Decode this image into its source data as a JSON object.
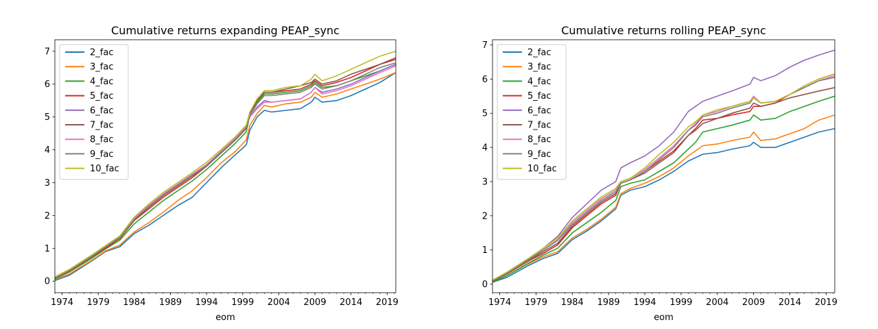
{
  "chart_data": [
    {
      "type": "line",
      "title": "Cumulative returns expanding PEAP_sync",
      "xlabel": "eom",
      "ylabel": "",
      "xlim": [
        1973.0,
        2020.2
      ],
      "ylim": [
        -0.35,
        7.35
      ],
      "xticks": [
        1974,
        1979,
        1984,
        1989,
        1994,
        1999,
        2004,
        2009,
        2014,
        2019
      ],
      "yticks": [
        0,
        1,
        2,
        3,
        4,
        5,
        6,
        7
      ],
      "legend": "upper-left",
      "x": [
        1973.0,
        1975.0,
        1978.0,
        1980.0,
        1982.0,
        1984.0,
        1986.0,
        1988.0,
        1990.0,
        1992.0,
        1994.0,
        1996.0,
        1998.0,
        1999.5,
        2000.0,
        2001.0,
        2002.0,
        2003.0,
        2005.0,
        2007.0,
        2008.5,
        2009.0,
        2010.0,
        2012.0,
        2014.0,
        2016.0,
        2018.0,
        2020.2
      ],
      "series": [
        {
          "name": "2_fac",
          "color": "#1f77b4",
          "values": [
            0.02,
            0.18,
            0.6,
            0.9,
            1.05,
            1.45,
            1.7,
            2.0,
            2.3,
            2.55,
            3.0,
            3.45,
            3.85,
            4.15,
            4.6,
            5.0,
            5.2,
            5.15,
            5.2,
            5.25,
            5.45,
            5.6,
            5.45,
            5.5,
            5.65,
            5.85,
            6.05,
            6.35
          ]
        },
        {
          "name": "3_fac",
          "color": "#ff7f0e",
          "values": [
            0.05,
            0.22,
            0.62,
            0.92,
            1.1,
            1.5,
            1.78,
            2.1,
            2.45,
            2.75,
            3.15,
            3.6,
            3.95,
            4.3,
            4.75,
            5.1,
            5.35,
            5.3,
            5.4,
            5.45,
            5.6,
            5.75,
            5.6,
            5.7,
            5.85,
            6.0,
            6.15,
            6.35
          ]
        },
        {
          "name": "4_fac",
          "color": "#2ca02c",
          "values": [
            0.07,
            0.28,
            0.68,
            0.98,
            1.25,
            1.75,
            2.1,
            2.45,
            2.75,
            3.05,
            3.4,
            3.8,
            4.2,
            4.55,
            5.05,
            5.45,
            5.7,
            5.7,
            5.75,
            5.8,
            5.95,
            6.05,
            5.9,
            5.95,
            6.1,
            6.25,
            6.4,
            6.6
          ]
        },
        {
          "name": "5_fac",
          "color": "#d62728",
          "values": [
            0.1,
            0.3,
            0.72,
            1.0,
            1.3,
            1.85,
            2.2,
            2.55,
            2.85,
            3.15,
            3.5,
            3.9,
            4.3,
            4.65,
            5.1,
            5.5,
            5.75,
            5.75,
            5.8,
            5.85,
            6.0,
            6.1,
            5.95,
            6.05,
            6.2,
            6.4,
            6.6,
            6.8
          ]
        },
        {
          "name": "6_fac",
          "color": "#9467bd",
          "values": [
            0.12,
            0.33,
            0.75,
            1.05,
            1.35,
            1.9,
            2.3,
            2.65,
            2.95,
            3.25,
            3.55,
            3.95,
            4.35,
            4.7,
            5.0,
            5.3,
            5.5,
            5.45,
            5.5,
            5.55,
            5.75,
            5.9,
            5.75,
            5.85,
            6.0,
            6.2,
            6.4,
            6.6
          ]
        },
        {
          "name": "7_fac",
          "color": "#8c564b",
          "values": [
            0.1,
            0.32,
            0.73,
            1.03,
            1.32,
            1.87,
            2.25,
            2.6,
            2.9,
            3.2,
            3.5,
            3.9,
            4.3,
            4.65,
            5.1,
            5.5,
            5.75,
            5.75,
            5.85,
            5.95,
            6.05,
            6.15,
            6.0,
            6.1,
            6.3,
            6.45,
            6.6,
            6.75
          ]
        },
        {
          "name": "8_fac",
          "color": "#e377c2",
          "values": [
            0.12,
            0.34,
            0.76,
            1.06,
            1.36,
            1.92,
            2.3,
            2.65,
            2.95,
            3.25,
            3.55,
            3.95,
            4.35,
            4.7,
            5.0,
            5.25,
            5.45,
            5.45,
            5.5,
            5.55,
            5.75,
            5.9,
            5.7,
            5.8,
            5.95,
            6.15,
            6.35,
            6.55
          ]
        },
        {
          "name": "9_fac",
          "color": "#7f7f7f",
          "values": [
            0.1,
            0.32,
            0.74,
            1.04,
            1.33,
            1.88,
            2.27,
            2.62,
            2.92,
            3.22,
            3.52,
            3.92,
            4.32,
            4.67,
            5.05,
            5.4,
            5.65,
            5.65,
            5.7,
            5.75,
            5.9,
            6.0,
            5.85,
            5.95,
            6.1,
            6.3,
            6.5,
            6.65
          ]
        },
        {
          "name": "10_fac",
          "color": "#bcbd22",
          "values": [
            0.13,
            0.36,
            0.78,
            1.08,
            1.38,
            1.95,
            2.35,
            2.7,
            3.0,
            3.3,
            3.62,
            4.0,
            4.4,
            4.75,
            5.15,
            5.55,
            5.8,
            5.8,
            5.9,
            5.95,
            6.15,
            6.3,
            6.1,
            6.25,
            6.45,
            6.65,
            6.85,
            7.0
          ]
        }
      ]
    },
    {
      "type": "line",
      "title": "Cumulative returns rolling PEAP_sync",
      "xlabel": "eom",
      "ylabel": "",
      "xlim": [
        1973.0,
        2020.2
      ],
      "ylim": [
        -0.25,
        7.15
      ],
      "xticks": [
        1974,
        1979,
        1984,
        1989,
        1994,
        1999,
        2004,
        2009,
        2014,
        2019
      ],
      "yticks": [
        0,
        1,
        2,
        3,
        4,
        5,
        6,
        7
      ],
      "legend": "upper-left",
      "x": [
        1973.0,
        1975.0,
        1978.0,
        1980.0,
        1982.0,
        1984.0,
        1986.0,
        1988.0,
        1990.0,
        1990.7,
        1992.0,
        1994.0,
        1996.0,
        1998.0,
        2000.0,
        2001.0,
        2002.0,
        2004.0,
        2006.0,
        2008.5,
        2009.0,
        2010.0,
        2012.0,
        2014.0,
        2016.0,
        2018.0,
        2020.2
      ],
      "series": [
        {
          "name": "2_fac",
          "color": "#1f77b4",
          "values": [
            0.05,
            0.2,
            0.55,
            0.75,
            0.9,
            1.3,
            1.55,
            1.85,
            2.2,
            2.6,
            2.75,
            2.85,
            3.05,
            3.3,
            3.6,
            3.7,
            3.8,
            3.85,
            3.95,
            4.05,
            4.15,
            4.0,
            4.0,
            4.15,
            4.3,
            4.45,
            4.55
          ]
        },
        {
          "name": "3_fac",
          "color": "#ff7f0e",
          "values": [
            0.05,
            0.25,
            0.6,
            0.8,
            0.95,
            1.35,
            1.6,
            1.9,
            2.25,
            2.65,
            2.8,
            2.95,
            3.15,
            3.4,
            3.75,
            3.9,
            4.05,
            4.1,
            4.2,
            4.3,
            4.45,
            4.2,
            4.25,
            4.4,
            4.55,
            4.8,
            4.95
          ]
        },
        {
          "name": "4_fac",
          "color": "#2ca02c",
          "values": [
            0.05,
            0.25,
            0.62,
            0.85,
            1.05,
            1.5,
            1.8,
            2.1,
            2.45,
            2.85,
            2.95,
            3.05,
            3.3,
            3.55,
            3.95,
            4.15,
            4.45,
            4.55,
            4.65,
            4.8,
            4.95,
            4.8,
            4.85,
            5.05,
            5.2,
            5.35,
            5.5
          ]
        },
        {
          "name": "5_fac",
          "color": "#d62728",
          "values": [
            0.08,
            0.3,
            0.68,
            0.9,
            1.15,
            1.65,
            2.0,
            2.35,
            2.6,
            2.95,
            3.05,
            3.3,
            3.6,
            3.9,
            4.35,
            4.55,
            4.8,
            4.85,
            4.95,
            5.05,
            5.2,
            5.2,
            5.3,
            5.55,
            5.8,
            6.0,
            6.15
          ]
        },
        {
          "name": "6_fac",
          "color": "#9467bd",
          "values": [
            0.1,
            0.32,
            0.75,
            1.05,
            1.4,
            1.95,
            2.35,
            2.75,
            3.0,
            3.4,
            3.55,
            3.75,
            4.05,
            4.45,
            5.05,
            5.2,
            5.35,
            5.5,
            5.65,
            5.85,
            6.05,
            5.95,
            6.1,
            6.35,
            6.55,
            6.7,
            6.85
          ]
        },
        {
          "name": "7_fac",
          "color": "#8c564b",
          "values": [
            0.08,
            0.3,
            0.7,
            0.95,
            1.2,
            1.7,
            2.05,
            2.4,
            2.65,
            2.95,
            3.05,
            3.25,
            3.55,
            3.85,
            4.35,
            4.5,
            4.7,
            4.85,
            5.0,
            5.15,
            5.3,
            5.2,
            5.3,
            5.45,
            5.55,
            5.65,
            5.75
          ]
        },
        {
          "name": "8_fac",
          "color": "#e377c2",
          "values": [
            0.1,
            0.33,
            0.72,
            1.0,
            1.3,
            1.8,
            2.15,
            2.5,
            2.75,
            3.0,
            3.1,
            3.35,
            3.7,
            4.05,
            4.5,
            4.7,
            4.95,
            5.05,
            5.2,
            5.35,
            5.5,
            5.3,
            5.35,
            5.55,
            5.75,
            5.95,
            6.1
          ]
        },
        {
          "name": "9_fac",
          "color": "#7f7f7f",
          "values": [
            0.1,
            0.33,
            0.72,
            1.0,
            1.28,
            1.75,
            2.1,
            2.45,
            2.7,
            2.95,
            3.05,
            3.3,
            3.65,
            4.0,
            4.5,
            4.65,
            4.9,
            5.0,
            5.15,
            5.3,
            5.45,
            5.3,
            5.35,
            5.55,
            5.75,
            5.95,
            6.05
          ]
        },
        {
          "name": "10_fac",
          "color": "#bcbd22",
          "values": [
            0.12,
            0.35,
            0.76,
            1.05,
            1.35,
            1.85,
            2.2,
            2.55,
            2.8,
            3.0,
            3.1,
            3.4,
            3.8,
            4.15,
            4.6,
            4.75,
            4.95,
            5.1,
            5.2,
            5.35,
            5.45,
            5.3,
            5.35,
            5.55,
            5.8,
            6.0,
            6.15
          ]
        }
      ]
    }
  ]
}
